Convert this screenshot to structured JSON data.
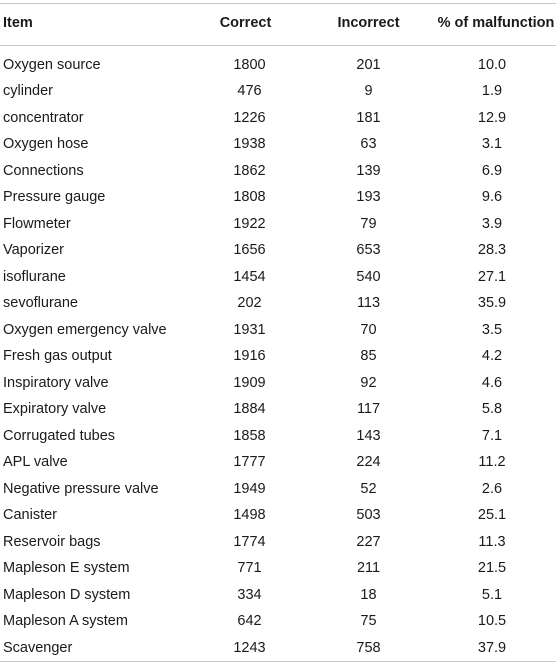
{
  "table": {
    "headers": {
      "item": "Item",
      "correct": "Correct",
      "incorrect": "Incorrect",
      "pct": "% of malfunction"
    },
    "rows": [
      {
        "item": "Oxygen source",
        "correct": "1800",
        "incorrect": "201",
        "pct": "10.0"
      },
      {
        "item": "cylinder",
        "correct": "476",
        "incorrect": "9",
        "pct": "1.9"
      },
      {
        "item": "concentrator",
        "correct": "1226",
        "incorrect": "181",
        "pct": "12.9"
      },
      {
        "item": "Oxygen hose",
        "correct": "1938",
        "incorrect": "63",
        "pct": "3.1"
      },
      {
        "item": "Connections",
        "correct": "1862",
        "incorrect": "139",
        "pct": "6.9"
      },
      {
        "item": "Pressure gauge",
        "correct": "1808",
        "incorrect": "193",
        "pct": "9.6"
      },
      {
        "item": "Flowmeter",
        "correct": "1922",
        "incorrect": "79",
        "pct": "3.9"
      },
      {
        "item": "Vaporizer",
        "correct": "1656",
        "incorrect": "653",
        "pct": "28.3"
      },
      {
        "item": "isoflurane",
        "correct": "1454",
        "incorrect": "540",
        "pct": "27.1"
      },
      {
        "item": "sevoflurane",
        "correct": "202",
        "incorrect": "113",
        "pct": "35.9"
      },
      {
        "item": "Oxygen emergency valve",
        "correct": "1931",
        "incorrect": "70",
        "pct": "3.5"
      },
      {
        "item": "Fresh gas output",
        "correct": "1916",
        "incorrect": "85",
        "pct": "4.2"
      },
      {
        "item": "Inspiratory valve",
        "correct": "1909",
        "incorrect": "92",
        "pct": "4.6"
      },
      {
        "item": "Expiratory valve",
        "correct": "1884",
        "incorrect": "117",
        "pct": "5.8"
      },
      {
        "item": "Corrugated tubes",
        "correct": "1858",
        "incorrect": "143",
        "pct": "7.1"
      },
      {
        "item": "APL valve",
        "correct": "1777",
        "incorrect": "224",
        "pct": "11.2"
      },
      {
        "item": "Negative pressure valve",
        "correct": "1949",
        "incorrect": "52",
        "pct": "2.6"
      },
      {
        "item": "Canister",
        "correct": "1498",
        "incorrect": "503",
        "pct": "25.1"
      },
      {
        "item": "Reservoir bags",
        "correct": "1774",
        "incorrect": "227",
        "pct": "11.3"
      },
      {
        "item": "Mapleson E system",
        "correct": "771",
        "incorrect": "211",
        "pct": "21.5"
      },
      {
        "item": "Mapleson D system",
        "correct": "334",
        "incorrect": "18",
        "pct": "5.1"
      },
      {
        "item": "Mapleson A system",
        "correct": "642",
        "incorrect": "75",
        "pct": "10.5"
      },
      {
        "item": "Scavenger",
        "correct": "1243",
        "incorrect": "758",
        "pct": "37.9"
      }
    ]
  }
}
